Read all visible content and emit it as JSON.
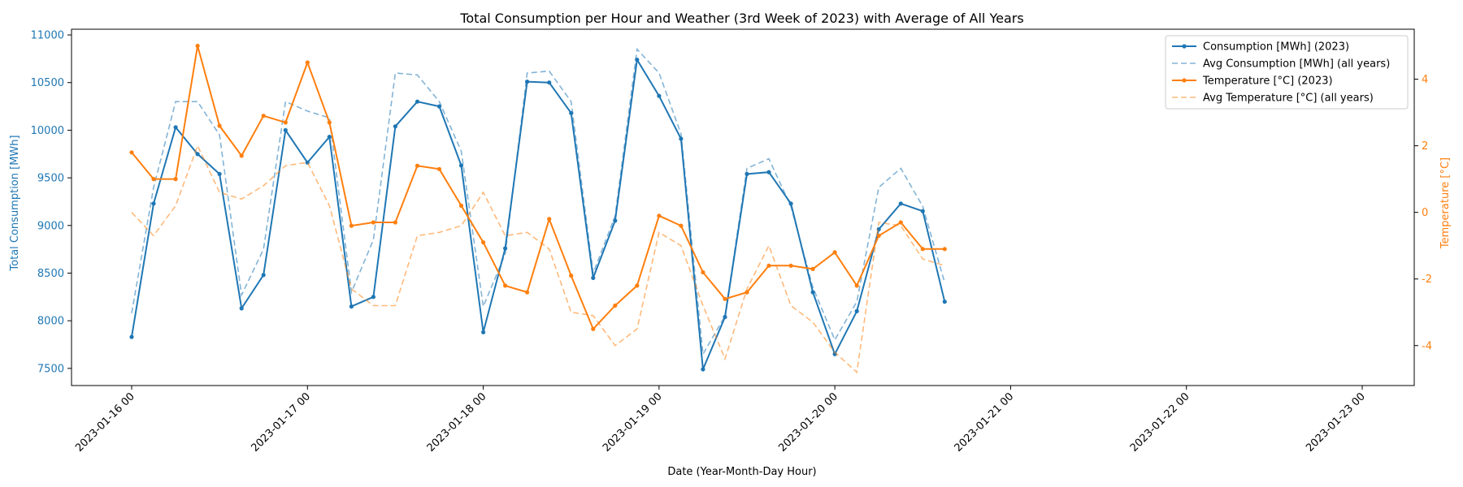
{
  "chart_data": {
    "type": "line",
    "title": "Total Consumption per Hour and Weather (3rd Week of 2023) with Average of All Years",
    "xlabel": "Date (Year-Month-Day Hour)",
    "ylabel_left": "Total Consumption [MWh]",
    "ylabel_right": "Temperature [°C]",
    "x_start": "2023-01-16 00",
    "x_end": "2023-01-23 00",
    "x_step_hours": 3,
    "x_ticks": [
      "2023-01-16 00",
      "2023-01-17 00",
      "2023-01-18 00",
      "2023-01-19 00",
      "2023-01-20 00",
      "2023-01-21 00",
      "2023-01-22 00",
      "2023-01-23 00"
    ],
    "y_left_ticks": [
      7500,
      8000,
      8500,
      9000,
      9500,
      10000,
      10500,
      11000
    ],
    "y_right_ticks": [
      -4,
      -2,
      0,
      2,
      4
    ],
    "ylim_left": [
      7320,
      11060
    ],
    "ylim_right": [
      -5.2,
      5.5
    ],
    "legend_position": "top-right",
    "grid": false,
    "colors": {
      "consumption": "#1f77b4",
      "temperature": "#ff7f0e",
      "left_axis": "#1f77b4",
      "right_axis": "#ff7f0e"
    },
    "series": [
      {
        "name": "Consumption [MWh] (2023)",
        "axis": "left",
        "style": "solid-marker",
        "values": [
          7830,
          9230,
          10030,
          9750,
          9540,
          8130,
          8480,
          10000,
          9660,
          9930,
          8150,
          8250,
          10040,
          10300,
          10250,
          9630,
          7880,
          8760,
          10510,
          10500,
          10180,
          8450,
          9050,
          10740,
          10360,
          9910,
          7490,
          8040,
          9540,
          9560,
          9230,
          8300,
          7650,
          8100,
          8960,
          9230,
          9150,
          8200
        ]
      },
      {
        "name": "Avg Consumption [MWh] (all years)",
        "axis": "left",
        "style": "dashed",
        "values": [
          8080,
          9400,
          10300,
          10300,
          9950,
          8270,
          8750,
          10300,
          10200,
          10130,
          8300,
          8850,
          10600,
          10580,
          10300,
          9780,
          8150,
          8700,
          10600,
          10620,
          10300,
          8500,
          9100,
          10850,
          10600,
          9960,
          7650,
          8050,
          9600,
          9700,
          9200,
          8350,
          7800,
          8200,
          9400,
          9600,
          9200,
          8400
        ]
      },
      {
        "name": "Temperature [°C] (2023)",
        "axis": "right",
        "style": "solid-marker",
        "values": [
          1.8,
          1.0,
          1.0,
          5.0,
          2.6,
          1.7,
          2.9,
          2.7,
          4.5,
          2.7,
          -0.4,
          -0.3,
          -0.3,
          1.4,
          1.3,
          0.2,
          -0.9,
          -2.2,
          -2.4,
          -0.2,
          -1.9,
          -3.5,
          -2.8,
          -2.2,
          -0.1,
          -0.4,
          -1.8,
          -2.6,
          -2.4,
          -1.6,
          -1.6,
          -1.7,
          -1.2,
          -2.2,
          -0.7,
          -0.3,
          -1.1,
          -1.1
        ]
      },
      {
        "name": "Avg Temperature [°C] (all years)",
        "axis": "right",
        "style": "dashed",
        "values": [
          0.0,
          -0.7,
          0.2,
          2.0,
          0.6,
          0.4,
          0.8,
          1.4,
          1.5,
          0.2,
          -2.3,
          -2.8,
          -2.8,
          -0.7,
          -0.6,
          -0.4,
          0.6,
          -0.7,
          -0.6,
          -1.1,
          -3.0,
          -3.1,
          -4.0,
          -3.5,
          -0.6,
          -1.0,
          -2.8,
          -4.4,
          -2.3,
          -1.0,
          -2.8,
          -3.3,
          -4.2,
          -4.8,
          -0.3,
          -0.4,
          -1.4,
          -1.6
        ]
      }
    ]
  }
}
